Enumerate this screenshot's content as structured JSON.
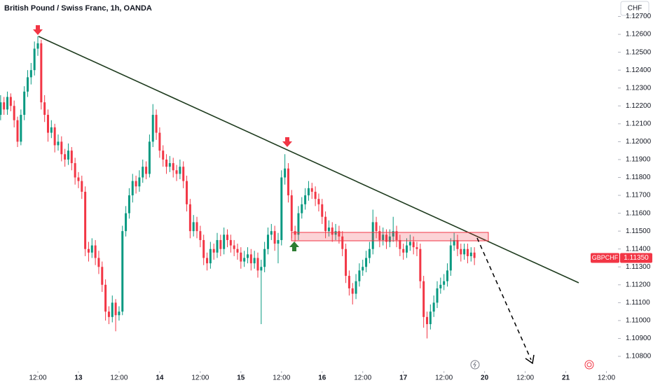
{
  "chart_data": {
    "type": "candlestick",
    "title": "British Pound / Swiss Franc, 1h, OANDA",
    "currency": "CHF",
    "symbol": "GBPCHF",
    "last_price": {
      "value": 1.1135,
      "label": "1.11350"
    },
    "up_color": "#089981",
    "down_color": "#f23645",
    "xlim": [
      -0.18,
      182
    ],
    "ylim": [
      1.10718,
      1.12792
    ],
    "yticks": [
      {
        "value": 1.127,
        "label": "1.12700"
      },
      {
        "value": 1.126,
        "label": "1.12600"
      },
      {
        "value": 1.125,
        "label": "1.12500"
      },
      {
        "value": 1.124,
        "label": "1.12400"
      },
      {
        "value": 1.123,
        "label": "1.12300"
      },
      {
        "value": 1.122,
        "label": "1.12200"
      },
      {
        "value": 1.121,
        "label": "1.12100"
      },
      {
        "value": 1.12,
        "label": "1.12000"
      },
      {
        "value": 1.119,
        "label": "1.11900"
      },
      {
        "value": 1.118,
        "label": "1.11800"
      },
      {
        "value": 1.117,
        "label": "1.11700"
      },
      {
        "value": 1.116,
        "label": "1.11600"
      },
      {
        "value": 1.115,
        "label": "1.11500"
      },
      {
        "value": 1.114,
        "label": "1.11400"
      },
      {
        "value": 1.113,
        "label": "1.11300"
      },
      {
        "value": 1.112,
        "label": "1.11200"
      },
      {
        "value": 1.111,
        "label": "1.11100"
      },
      {
        "value": 1.11,
        "label": "1.11000"
      },
      {
        "value": 1.109,
        "label": "1.10900"
      },
      {
        "value": 1.108,
        "label": "1.10800"
      }
    ],
    "xticks": [
      {
        "value": 11,
        "label": "12:00"
      },
      {
        "value": 23,
        "label": "13"
      },
      {
        "value": 35,
        "label": "12:00"
      },
      {
        "value": 47,
        "label": "14"
      },
      {
        "value": 59,
        "label": "12:00"
      },
      {
        "value": 71,
        "label": "15"
      },
      {
        "value": 83,
        "label": "12:00"
      },
      {
        "value": 95,
        "label": "16"
      },
      {
        "value": 107,
        "label": "12:00"
      },
      {
        "value": 119,
        "label": "17"
      },
      {
        "value": 131,
        "label": "12:00"
      },
      {
        "value": 143,
        "label": "20"
      },
      {
        "value": 155,
        "label": "12:00"
      },
      {
        "value": 167,
        "label": "21"
      },
      {
        "value": 179,
        "label": "12:00"
      }
    ],
    "candles": [
      [
        1.1215,
        1.1226,
        1.1212,
        1.1222
      ],
      [
        1.1222,
        1.1225,
        1.1215,
        1.1218
      ],
      [
        1.1218,
        1.1228,
        1.1215,
        1.1225
      ],
      [
        1.1225,
        1.1227,
        1.1217,
        1.122
      ],
      [
        1.122,
        1.1223,
        1.1208,
        1.1212
      ],
      [
        1.1212,
        1.1214,
        1.1197,
        1.12
      ],
      [
        1.12,
        1.1218,
        1.1198,
        1.1215
      ],
      [
        1.1215,
        1.1231,
        1.1212,
        1.1228
      ],
      [
        1.1228,
        1.124,
        1.1225,
        1.1236
      ],
      [
        1.1236,
        1.1244,
        1.1232,
        1.124
      ],
      [
        1.124,
        1.1256,
        1.1237,
        1.1252
      ],
      [
        1.1252,
        1.1259,
        1.1248,
        1.1255
      ],
      [
        1.1255,
        1.1257,
        1.1218,
        1.1222
      ],
      [
        1.1222,
        1.1226,
        1.1211,
        1.1215
      ],
      [
        1.1215,
        1.1218,
        1.12,
        1.1205
      ],
      [
        1.1205,
        1.1212,
        1.1202,
        1.1208
      ],
      [
        1.1208,
        1.121,
        1.1194,
        1.1198
      ],
      [
        1.1198,
        1.1204,
        1.1195,
        1.12
      ],
      [
        1.12,
        1.1203,
        1.1189,
        1.1193
      ],
      [
        1.1193,
        1.1196,
        1.1186,
        1.119
      ],
      [
        1.119,
        1.1199,
        1.1187,
        1.1195
      ],
      [
        1.1195,
        1.1197,
        1.1184,
        1.1188
      ],
      [
        1.1188,
        1.1191,
        1.1176,
        1.118
      ],
      [
        1.118,
        1.1183,
        1.1174,
        1.1178
      ],
      [
        1.1178,
        1.1181,
        1.1168,
        1.1172
      ],
      [
        1.1172,
        1.1175,
        1.1136,
        1.114
      ],
      [
        1.114,
        1.1144,
        1.1133,
        1.1138
      ],
      [
        1.1138,
        1.1146,
        1.1135,
        1.1142
      ],
      [
        1.1142,
        1.1145,
        1.1131,
        1.1135
      ],
      [
        1.1135,
        1.1139,
        1.1126,
        1.113
      ],
      [
        1.113,
        1.1133,
        1.1116,
        1.112
      ],
      [
        1.112,
        1.1123,
        1.11,
        1.1105
      ],
      [
        1.1105,
        1.1108,
        1.1098,
        1.1102
      ],
      [
        1.1102,
        1.1114,
        1.1099,
        1.111
      ],
      [
        1.111,
        1.1112,
        1.1094,
        1.1103
      ],
      [
        1.1103,
        1.1108,
        1.11,
        1.1105
      ],
      [
        1.1105,
        1.1153,
        1.1103,
        1.115
      ],
      [
        1.115,
        1.1164,
        1.1147,
        1.116
      ],
      [
        1.116,
        1.1174,
        1.1157,
        1.117
      ],
      [
        1.117,
        1.1182,
        1.1166,
        1.1178
      ],
      [
        1.1178,
        1.1181,
        1.1171,
        1.1175
      ],
      [
        1.1175,
        1.1184,
        1.1172,
        1.118
      ],
      [
        1.118,
        1.119,
        1.1177,
        1.1186
      ],
      [
        1.1186,
        1.1189,
        1.1179,
        1.1182
      ],
      [
        1.1182,
        1.1204,
        1.118,
        1.12
      ],
      [
        1.12,
        1.1221,
        1.1197,
        1.1215
      ],
      [
        1.1215,
        1.1218,
        1.1201,
        1.1205
      ],
      [
        1.1205,
        1.1208,
        1.1191,
        1.1195
      ],
      [
        1.1195,
        1.1198,
        1.1186,
        1.119
      ],
      [
        1.119,
        1.1193,
        1.1182,
        1.1186
      ],
      [
        1.1186,
        1.1192,
        1.1183,
        1.1188
      ],
      [
        1.1188,
        1.1191,
        1.118,
        1.1184
      ],
      [
        1.1184,
        1.1187,
        1.1178,
        1.1182
      ],
      [
        1.1182,
        1.119,
        1.1179,
        1.1186
      ],
      [
        1.1186,
        1.1189,
        1.1174,
        1.1178
      ],
      [
        1.1178,
        1.1181,
        1.1161,
        1.1165
      ],
      [
        1.1165,
        1.1168,
        1.1146,
        1.115
      ],
      [
        1.115,
        1.1159,
        1.1147,
        1.1155
      ],
      [
        1.1155,
        1.1158,
        1.1146,
        1.115
      ],
      [
        1.115,
        1.1153,
        1.1141,
        1.1145
      ],
      [
        1.1145,
        1.1148,
        1.1131,
        1.1135
      ],
      [
        1.1135,
        1.1138,
        1.1128,
        1.1132
      ],
      [
        1.1132,
        1.1144,
        1.1129,
        1.114
      ],
      [
        1.114,
        1.1143,
        1.1134,
        1.1138
      ],
      [
        1.1138,
        1.1149,
        1.1135,
        1.1145
      ],
      [
        1.1145,
        1.1148,
        1.1136,
        1.114
      ],
      [
        1.114,
        1.1152,
        1.1137,
        1.1148
      ],
      [
        1.1148,
        1.1151,
        1.1141,
        1.1145
      ],
      [
        1.1145,
        1.1148,
        1.1138,
        1.1142
      ],
      [
        1.1142,
        1.1145,
        1.1136,
        1.114
      ],
      [
        1.114,
        1.1143,
        1.1134,
        1.1138
      ],
      [
        1.1138,
        1.1141,
        1.1129,
        1.1133
      ],
      [
        1.1133,
        1.1139,
        1.113,
        1.1135
      ],
      [
        1.1135,
        1.1141,
        1.1132,
        1.1137
      ],
      [
        1.1137,
        1.114,
        1.1128,
        1.1132
      ],
      [
        1.1132,
        1.1139,
        1.1129,
        1.1135
      ],
      [
        1.1135,
        1.1138,
        1.1124,
        1.1128
      ],
      [
        1.1128,
        1.1134,
        1.1098,
        1.113
      ],
      [
        1.113,
        1.1144,
        1.1127,
        1.114
      ],
      [
        1.114,
        1.1152,
        1.1137,
        1.1148
      ],
      [
        1.1148,
        1.1154,
        1.1145,
        1.115
      ],
      [
        1.115,
        1.1153,
        1.1139,
        1.1143
      ],
      [
        1.1143,
        1.1149,
        1.1132,
        1.1145
      ],
      [
        1.1145,
        1.1184,
        1.1142,
        1.118
      ],
      [
        1.118,
        1.1193,
        1.1176,
        1.1185
      ],
      [
        1.1185,
        1.1188,
        1.1166,
        1.117
      ],
      [
        1.117,
        1.1173,
        1.1146,
        1.115
      ],
      [
        1.115,
        1.1153,
        1.1144,
        1.1148
      ],
      [
        1.1148,
        1.1164,
        1.1145,
        1.116
      ],
      [
        1.116,
        1.1169,
        1.1157,
        1.1165
      ],
      [
        1.1165,
        1.1174,
        1.1162,
        1.117
      ],
      [
        1.117,
        1.1178,
        1.1167,
        1.1174
      ],
      [
        1.1174,
        1.1177,
        1.1168,
        1.1172
      ],
      [
        1.1172,
        1.1175,
        1.1164,
        1.1168
      ],
      [
        1.1168,
        1.1171,
        1.1161,
        1.1165
      ],
      [
        1.1165,
        1.1168,
        1.1154,
        1.1158
      ],
      [
        1.1158,
        1.1161,
        1.1146,
        1.115
      ],
      [
        1.115,
        1.1156,
        1.1147,
        1.1152
      ],
      [
        1.1152,
        1.1155,
        1.1144,
        1.1148
      ],
      [
        1.1148,
        1.1154,
        1.1145,
        1.115
      ],
      [
        1.115,
        1.1153,
        1.1143,
        1.1147
      ],
      [
        1.1147,
        1.115,
        1.1136,
        1.114
      ],
      [
        1.114,
        1.1143,
        1.1121,
        1.1125
      ],
      [
        1.1125,
        1.1128,
        1.1114,
        1.1118
      ],
      [
        1.1118,
        1.1121,
        1.1109,
        1.1115
      ],
      [
        1.1115,
        1.1126,
        1.1112,
        1.1122
      ],
      [
        1.1122,
        1.1132,
        1.1119,
        1.1128
      ],
      [
        1.1128,
        1.1134,
        1.1125,
        1.113
      ],
      [
        1.113,
        1.1139,
        1.1127,
        1.1135
      ],
      [
        1.1135,
        1.1144,
        1.1132,
        1.114
      ],
      [
        1.114,
        1.1162,
        1.1137,
        1.1155
      ],
      [
        1.1155,
        1.1158,
        1.1146,
        1.115
      ],
      [
        1.115,
        1.1153,
        1.1141,
        1.1145
      ],
      [
        1.1145,
        1.1152,
        1.1142,
        1.1148
      ],
      [
        1.1148,
        1.1151,
        1.114,
        1.1144
      ],
      [
        1.1144,
        1.1151,
        1.1141,
        1.1147
      ],
      [
        1.1147,
        1.1158,
        1.1144,
        1.115
      ],
      [
        1.115,
        1.1153,
        1.1141,
        1.1145
      ],
      [
        1.1145,
        1.1148,
        1.1136,
        1.114
      ],
      [
        1.114,
        1.1143,
        1.1134,
        1.1138
      ],
      [
        1.1138,
        1.1146,
        1.1135,
        1.1142
      ],
      [
        1.1142,
        1.1148,
        1.1139,
        1.1144
      ],
      [
        1.1144,
        1.1147,
        1.1137,
        1.1141
      ],
      [
        1.1141,
        1.1144,
        1.1136,
        1.114
      ],
      [
        1.114,
        1.1143,
        1.1118,
        1.1122
      ],
      [
        1.1122,
        1.1125,
        1.1096,
        1.1102
      ],
      [
        1.1102,
        1.1105,
        1.109,
        1.1098
      ],
      [
        1.1098,
        1.1109,
        1.1095,
        1.1105
      ],
      [
        1.1105,
        1.1114,
        1.1102,
        1.111
      ],
      [
        1.111,
        1.1122,
        1.1107,
        1.1118
      ],
      [
        1.1118,
        1.1124,
        1.1115,
        1.112
      ],
      [
        1.112,
        1.1126,
        1.1117,
        1.1122
      ],
      [
        1.1122,
        1.1132,
        1.1119,
        1.1128
      ],
      [
        1.1128,
        1.1146,
        1.1125,
        1.1142
      ],
      [
        1.1142,
        1.1149,
        1.1139,
        1.1145
      ],
      [
        1.1145,
        1.1148,
        1.1136,
        1.114
      ],
      [
        1.114,
        1.1143,
        1.1133,
        1.1137
      ],
      [
        1.1137,
        1.1143,
        1.1134,
        1.114
      ],
      [
        1.114,
        1.1143,
        1.1132,
        1.1136
      ],
      [
        1.1136,
        1.1141,
        1.1133,
        1.1138
      ],
      [
        1.1138,
        1.1141,
        1.1131,
        1.1135
      ]
    ]
  }
}
